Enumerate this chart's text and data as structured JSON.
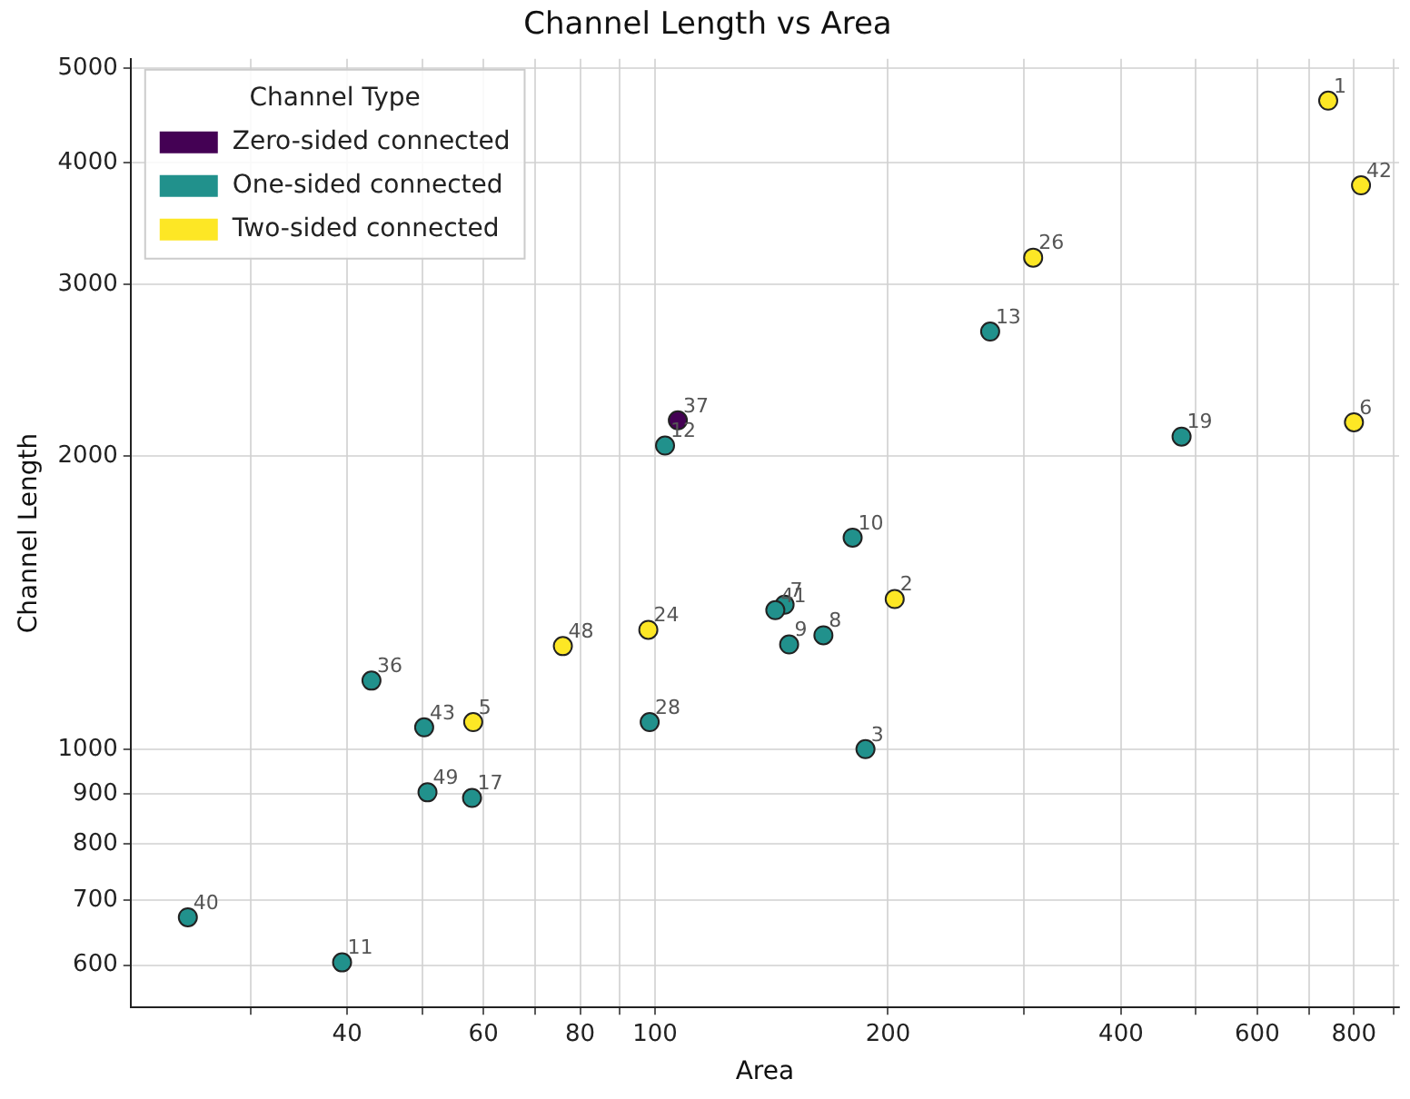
{
  "chart_data": {
    "type": "scatter",
    "title": "Channel Length vs Area",
    "xlabel": "Area",
    "ylabel": "Channel Length",
    "legend_title": "Channel Type",
    "legend": "top left",
    "log": "xy",
    "grid": true,
    "marker": "circle",
    "xlim": [
      21,
      915
    ],
    "ylim": [
      543,
      5115
    ],
    "xticks": [
      {
        "value": 30,
        "label": null
      },
      40,
      {
        "value": 50,
        "label": null
      },
      60,
      {
        "value": 70,
        "label": null
      },
      80,
      {
        "value": 90,
        "label": null
      },
      100,
      200,
      {
        "value": 300,
        "label": null
      },
      400,
      {
        "value": 500,
        "label": null
      },
      600,
      {
        "value": 700,
        "label": null
      },
      800,
      {
        "value": 900,
        "label": null
      }
    ],
    "yticks": [
      600,
      700,
      800,
      900,
      1000,
      2000,
      3000,
      4000,
      5000
    ],
    "series": [
      {
        "name": "Zero-sided connected",
        "color": "#440154",
        "x": [
          107
        ],
        "values": [
          2176
        ]
      },
      {
        "name": "One-sided connected",
        "color": "#21918c",
        "x": [
          271,
          479,
          103,
          180,
          147,
          143,
          149,
          165,
          187,
          43,
          50.3,
          98.4,
          50.8,
          58,
          24.9,
          39.4
        ],
        "values": [
          2684,
          2094,
          2050,
          1649,
          1407,
          1389,
          1281,
          1309,
          1000,
          1176,
          1053,
          1066,
          903,
          891,
          672,
          604
        ]
      },
      {
        "name": "Two-sided connected",
        "color": "#fde725",
        "x": [
          741,
          817,
          308,
          800,
          204,
          76,
          98,
          58.2
        ],
        "values": [
          4634,
          3793,
          3197,
          2166,
          1426,
          1276,
          1326,
          1066
        ]
      }
    ],
    "annotations": [
      {
        "text": "1",
        "x": 741,
        "y": 4634
      },
      {
        "text": "42",
        "x": 817,
        "y": 3793
      },
      {
        "text": "26",
        "x": 308,
        "y": 3197
      },
      {
        "text": "13",
        "x": 271,
        "y": 2684
      },
      {
        "text": "19",
        "x": 479,
        "y": 2094
      },
      {
        "text": "6",
        "x": 800,
        "y": 2166
      },
      {
        "text": "37",
        "x": 107,
        "y": 2176
      },
      {
        "text": "12",
        "x": 103,
        "y": 2050
      },
      {
        "text": "10",
        "x": 180,
        "y": 1649
      },
      {
        "text": "2",
        "x": 204,
        "y": 1426
      },
      {
        "text": "7",
        "x": 147,
        "y": 1407
      },
      {
        "text": "41",
        "x": 143,
        "y": 1389
      },
      {
        "text": "9",
        "x": 149,
        "y": 1281
      },
      {
        "text": "8",
        "x": 165,
        "y": 1309
      },
      {
        "text": "3",
        "x": 187,
        "y": 1000
      },
      {
        "text": "48",
        "x": 76,
        "y": 1276
      },
      {
        "text": "24",
        "x": 98,
        "y": 1326
      },
      {
        "text": "36",
        "x": 43,
        "y": 1176
      },
      {
        "text": "43",
        "x": 50.3,
        "y": 1053
      },
      {
        "text": "5",
        "x": 58.2,
        "y": 1066
      },
      {
        "text": "28",
        "x": 98.4,
        "y": 1066
      },
      {
        "text": "49",
        "x": 50.8,
        "y": 903
      },
      {
        "text": "17",
        "x": 58,
        "y": 891
      },
      {
        "text": "40",
        "x": 24.9,
        "y": 672
      },
      {
        "text": "11",
        "x": 39.4,
        "y": 604
      }
    ]
  }
}
